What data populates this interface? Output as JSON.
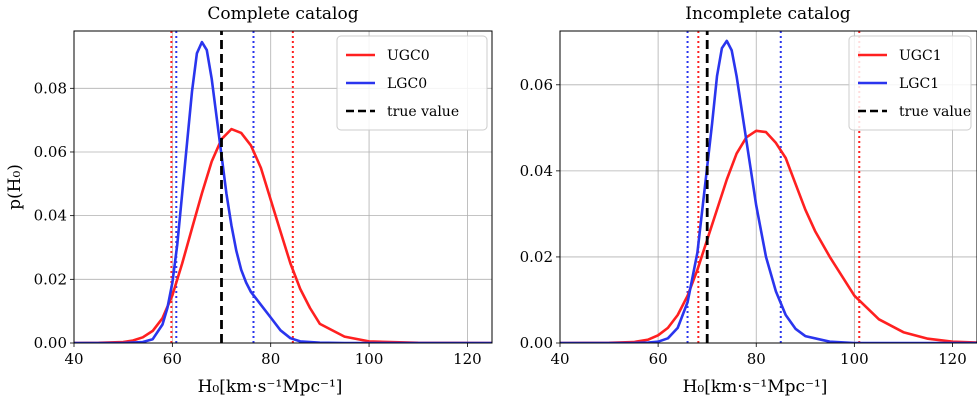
{
  "chart_data": [
    {
      "type": "line",
      "title": "Complete catalog",
      "xlabel": "H₀[km·s⁻¹Mpc⁻¹]",
      "ylabel": "p(H₀)",
      "xlim": [
        40,
        125
      ],
      "ylim": [
        0,
        0.098
      ],
      "xticks": [
        40,
        60,
        80,
        100,
        120
      ],
      "xtick_labels": [
        "40",
        "60",
        "80",
        "100",
        "120"
      ],
      "yticks": [
        0,
        0.02,
        0.04,
        0.06,
        0.08
      ],
      "ytick_labels": [
        "0.00",
        "0.02",
        "0.04",
        "0.06",
        "0.08"
      ],
      "grid": true,
      "legend_position": "top-right",
      "series": [
        {
          "name": "UGC0",
          "color": "#ff2020",
          "style": "solid",
          "x": [
            40,
            45,
            50,
            52,
            54,
            56,
            58,
            60,
            62,
            64,
            66,
            68,
            70,
            72,
            74,
            76,
            78,
            80,
            82,
            84,
            86,
            88,
            90,
            95,
            100,
            110,
            125
          ],
          "y": [
            0,
            5e-05,
            0.0003,
            0.0008,
            0.0018,
            0.0038,
            0.0078,
            0.015,
            0.025,
            0.036,
            0.047,
            0.057,
            0.064,
            0.0672,
            0.066,
            0.062,
            0.055,
            0.045,
            0.035,
            0.025,
            0.017,
            0.011,
            0.006,
            0.002,
            0.0005,
            5e-05,
            0
          ]
        },
        {
          "name": "LGC0",
          "color": "#2a35ee",
          "style": "solid",
          "x": [
            40,
            50,
            54,
            56,
            58,
            59,
            60,
            61,
            62,
            63,
            64,
            65,
            66,
            67,
            68,
            69,
            70,
            71,
            72,
            73,
            74,
            75,
            76,
            77,
            78,
            80,
            82,
            84,
            86,
            90,
            95,
            125
          ],
          "y": [
            0,
            0,
            0.0003,
            0.0012,
            0.0058,
            0.011,
            0.019,
            0.031,
            0.047,
            0.063,
            0.079,
            0.091,
            0.0945,
            0.092,
            0.083,
            0.071,
            0.059,
            0.047,
            0.037,
            0.029,
            0.023,
            0.019,
            0.016,
            0.014,
            0.012,
            0.008,
            0.004,
            0.0015,
            0.0005,
            0.0001,
            0,
            0
          ]
        },
        {
          "name": "true value",
          "color": "#000000",
          "style": "dashed",
          "x": [
            70,
            70
          ],
          "y": [
            0,
            0.098
          ]
        }
      ],
      "vlines": [
        {
          "x": 59.8,
          "color": "#ff2020",
          "style": "dotted"
        },
        {
          "x": 84.5,
          "color": "#ff2020",
          "style": "dotted"
        },
        {
          "x": 60.8,
          "color": "#2a35ee",
          "style": "dotted"
        },
        {
          "x": 76.5,
          "color": "#2a35ee",
          "style": "dotted"
        }
      ]
    },
    {
      "type": "line",
      "title": "Incomplete catalog",
      "xlabel": "H₀[km·s⁻¹Mpc⁻¹]",
      "ylabel": "",
      "xlim": [
        40,
        125
      ],
      "ylim": [
        0,
        0.0725
      ],
      "xticks": [
        40,
        60,
        80,
        100,
        120
      ],
      "xtick_labels": [
        "40",
        "60",
        "80",
        "100",
        "120"
      ],
      "yticks": [
        0,
        0.02,
        0.04,
        0.06
      ],
      "ytick_labels": [
        "0.00",
        "0.02",
        "0.04",
        "0.06"
      ],
      "grid": true,
      "legend_position": "top-right",
      "series": [
        {
          "name": "UGC1",
          "color": "#ff2020",
          "style": "solid",
          "x": [
            40,
            50,
            55,
            58,
            60,
            62,
            64,
            66,
            68,
            70,
            72,
            74,
            76,
            78,
            80,
            82,
            84,
            86,
            88,
            90,
            92,
            95,
            100,
            105,
            110,
            115,
            120,
            125
          ],
          "y": [
            0,
            5e-05,
            0.0002,
            0.0008,
            0.0018,
            0.0035,
            0.0065,
            0.011,
            0.017,
            0.024,
            0.031,
            0.038,
            0.044,
            0.0478,
            0.0493,
            0.049,
            0.0465,
            0.043,
            0.037,
            0.031,
            0.026,
            0.02,
            0.011,
            0.0055,
            0.0025,
            0.001,
            0.0003,
            0.0001
          ]
        },
        {
          "name": "LGC1",
          "color": "#2a35ee",
          "style": "solid",
          "x": [
            40,
            55,
            58,
            60,
            62,
            64,
            66,
            68,
            70,
            71,
            72,
            73,
            74,
            75,
            76,
            78,
            80,
            82,
            84,
            86,
            88,
            90,
            95,
            100,
            125
          ],
          "y": [
            0,
            0,
            0.0001,
            0.0003,
            0.0011,
            0.0035,
            0.0095,
            0.021,
            0.041,
            0.051,
            0.062,
            0.0685,
            0.0702,
            0.068,
            0.062,
            0.047,
            0.032,
            0.02,
            0.012,
            0.0065,
            0.0033,
            0.0016,
            0.0003,
            0,
            0
          ]
        },
        {
          "name": "true value",
          "color": "#000000",
          "style": "dashed",
          "x": [
            70,
            70
          ],
          "y": [
            0,
            0.0725
          ]
        }
      ],
      "vlines": [
        {
          "x": 68.2,
          "color": "#ff2020",
          "style": "dotted"
        },
        {
          "x": 101,
          "color": "#ff2020",
          "style": "dotted"
        },
        {
          "x": 66,
          "color": "#2a35ee",
          "style": "dotted"
        },
        {
          "x": 85,
          "color": "#2a35ee",
          "style": "dotted"
        }
      ]
    }
  ]
}
